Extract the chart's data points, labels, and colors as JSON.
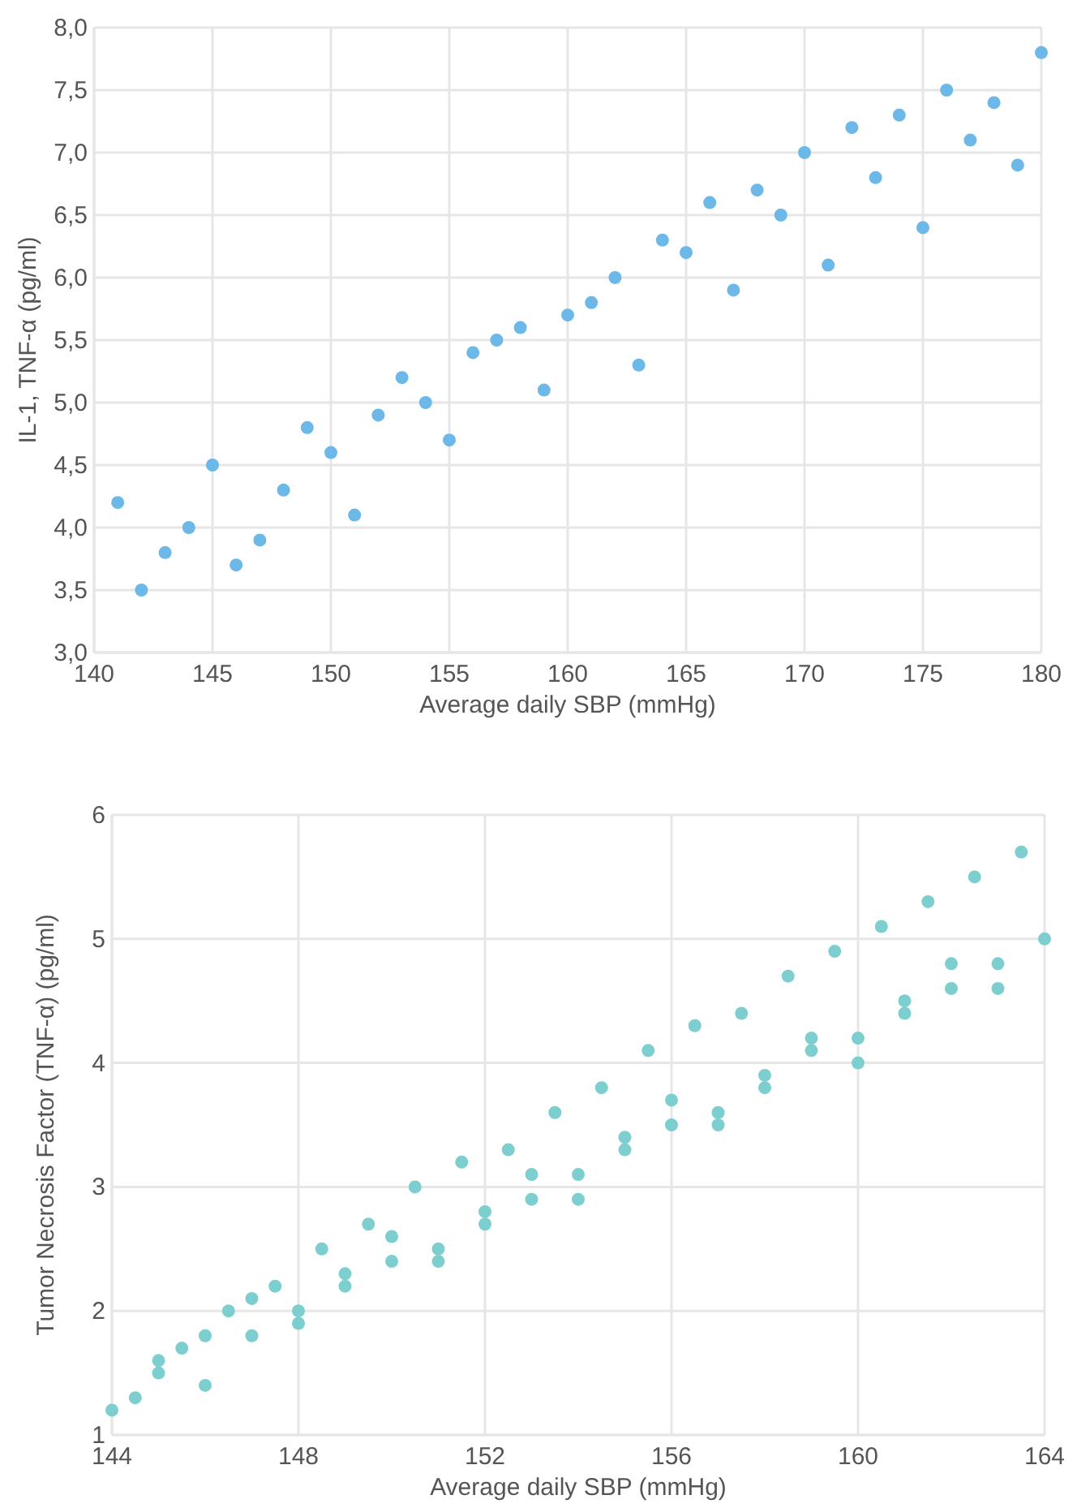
{
  "chart_data": [
    {
      "type": "scatter",
      "xlabel": "Average daily SBP (mmHg)",
      "ylabel": "IL-1, TNF-α (pg/ml)",
      "xlim": [
        140,
        180
      ],
      "xticks": [
        140,
        145,
        150,
        155,
        160,
        165,
        170,
        175,
        180
      ],
      "ylim": [
        3,
        8
      ],
      "yticks": [
        {
          "value": 3,
          "label": "3,0"
        },
        {
          "value": 3.5,
          "label": "3,5"
        },
        {
          "value": 4,
          "label": "4,0"
        },
        {
          "value": 4.5,
          "label": "4,5"
        },
        {
          "value": 5,
          "label": "5,0"
        },
        {
          "value": 5.5,
          "label": "5,5"
        },
        {
          "value": 6,
          "label": "6,0"
        },
        {
          "value": 6.5,
          "label": "6,5"
        },
        {
          "value": 7,
          "label": "7,0"
        },
        {
          "value": 7.5,
          "label": "7,5"
        },
        {
          "value": 8,
          "label": "8,0"
        }
      ],
      "grid": true,
      "marker": "circle",
      "series": [
        {
          "color": "#6cb8e8",
          "x": [
            141,
            142,
            143,
            144,
            145,
            146,
            147,
            148,
            149,
            150,
            151,
            152,
            153,
            154,
            155,
            156,
            157,
            158,
            159,
            160,
            161,
            162,
            163,
            164,
            165,
            166,
            167,
            168,
            169,
            170,
            171,
            172,
            173,
            174,
            175,
            176,
            177,
            178,
            179,
            180
          ],
          "values": [
            4.2,
            3.5,
            3.8,
            4.0,
            4.5,
            3.7,
            3.9,
            4.3,
            4.8,
            4.6,
            4.1,
            4.9,
            5.2,
            5.0,
            4.7,
            5.4,
            5.5,
            5.6,
            5.1,
            5.7,
            5.8,
            6.0,
            5.3,
            6.3,
            6.2,
            6.6,
            5.9,
            6.7,
            6.5,
            7.0,
            6.1,
            7.2,
            6.8,
            7.3,
            6.4,
            7.5,
            7.1,
            7.4,
            6.9,
            7.8
          ]
        }
      ]
    },
    {
      "type": "scatter",
      "xlabel": "Average daily SBP (mmHg)",
      "ylabel": "Tumor Necrosis Factor (TNF-α) (pg/ml)",
      "xlim": [
        144,
        164
      ],
      "xticks": [
        144,
        148,
        152,
        156,
        160,
        164
      ],
      "ylim": [
        1,
        6
      ],
      "yticks": [
        1,
        2,
        3,
        4,
        5,
        6
      ],
      "grid": true,
      "marker": "circle",
      "series": [
        {
          "color": "#7dcfcf",
          "x": [
            144,
            144.5,
            145,
            145,
            145.5,
            146,
            146,
            146.5,
            147,
            147,
            147.5,
            148,
            148,
            148.5,
            149,
            149,
            149.5,
            150,
            150,
            150.5,
            151,
            151,
            151.5,
            152,
            152,
            152.5,
            153,
            153,
            153.5,
            154,
            154,
            154.5,
            155,
            155,
            155.5,
            156,
            156,
            156.5,
            157,
            157,
            157.5,
            158,
            158,
            158.5,
            159,
            159,
            159.5,
            160,
            160,
            160.5,
            161,
            161,
            161.5,
            162,
            162,
            162.5,
            163,
            163,
            163.5,
            164
          ],
          "values": [
            1.2,
            1.3,
            1.6,
            1.5,
            1.7,
            1.8,
            1.4,
            2.0,
            2.1,
            1.8,
            2.2,
            2.0,
            1.9,
            2.5,
            2.3,
            2.2,
            2.7,
            2.6,
            2.4,
            3.0,
            2.5,
            2.4,
            3.2,
            2.8,
            2.7,
            3.3,
            3.1,
            2.9,
            3.6,
            3.1,
            2.9,
            3.8,
            3.4,
            3.3,
            4.1,
            3.7,
            3.5,
            4.3,
            3.6,
            3.5,
            4.4,
            3.9,
            3.8,
            4.7,
            4.2,
            4.1,
            4.9,
            4.2,
            4.0,
            5.1,
            4.5,
            4.4,
            5.3,
            4.8,
            4.6,
            5.5,
            4.8,
            4.6,
            5.7,
            5.0
          ]
        }
      ]
    }
  ]
}
